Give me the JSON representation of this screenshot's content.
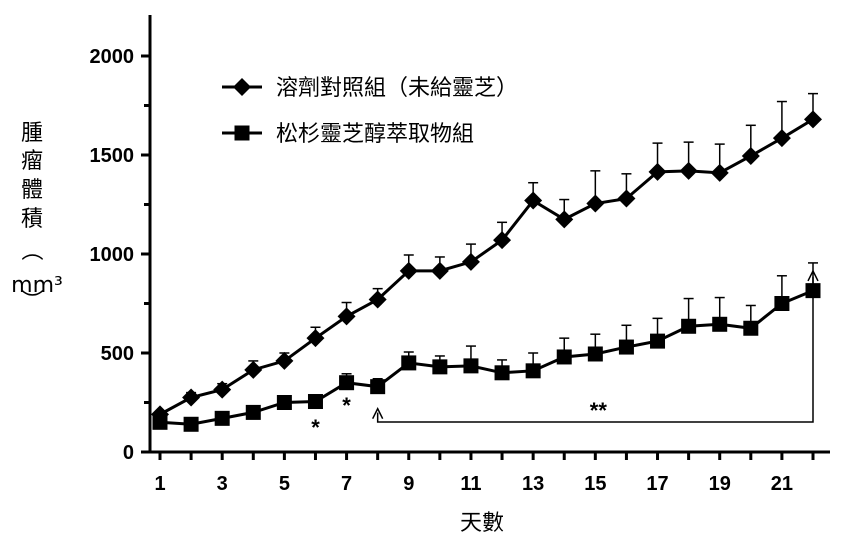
{
  "chart_data": {
    "type": "line",
    "xlabel": "天數",
    "ylabel_chars": [
      "腫",
      "瘤",
      "體",
      "積",
      "（",
      "mm³",
      "）"
    ],
    "xlim": [
      1,
      22
    ],
    "ylim": [
      0,
      2000
    ],
    "x_ticks": [
      1,
      3,
      5,
      7,
      9,
      11,
      13,
      15,
      17,
      19,
      21
    ],
    "y_ticks": [
      0,
      500,
      1000,
      1500,
      2000
    ],
    "grid": false,
    "legend_position": "top-left",
    "x": [
      1,
      2,
      3,
      4,
      5,
      6,
      7,
      8,
      9,
      10,
      11,
      12,
      13,
      14,
      15,
      16,
      17,
      18,
      19,
      20,
      21,
      22
    ],
    "series": [
      {
        "name": "溶劑對照組（未給靈芝）",
        "marker": "diamond",
        "values": [
          190,
          275,
          315,
          415,
          460,
          575,
          685,
          770,
          915,
          915,
          960,
          1070,
          1270,
          1175,
          1255,
          1280,
          1415,
          1420,
          1410,
          1495,
          1585,
          1680
        ],
        "errors": [
          15,
          25,
          30,
          45,
          40,
          55,
          70,
          55,
          80,
          70,
          90,
          90,
          90,
          100,
          165,
          125,
          145,
          145,
          145,
          155,
          185,
          130
        ]
      },
      {
        "name": "松杉靈芝醇萃取物組",
        "marker": "square",
        "values": [
          150,
          140,
          170,
          200,
          250,
          255,
          350,
          330,
          450,
          430,
          435,
          400,
          410,
          480,
          495,
          530,
          560,
          635,
          645,
          625,
          750,
          815
        ],
        "errors": [
          15,
          15,
          15,
          20,
          25,
          25,
          45,
          40,
          55,
          55,
          100,
          65,
          90,
          95,
          100,
          110,
          115,
          140,
          135,
          115,
          140,
          140
        ]
      }
    ],
    "annotations": [
      {
        "text": "*",
        "x": 6
      },
      {
        "text": "*",
        "x": 7
      },
      {
        "text": "**",
        "bracket_from": 8,
        "bracket_to": 22
      }
    ]
  }
}
